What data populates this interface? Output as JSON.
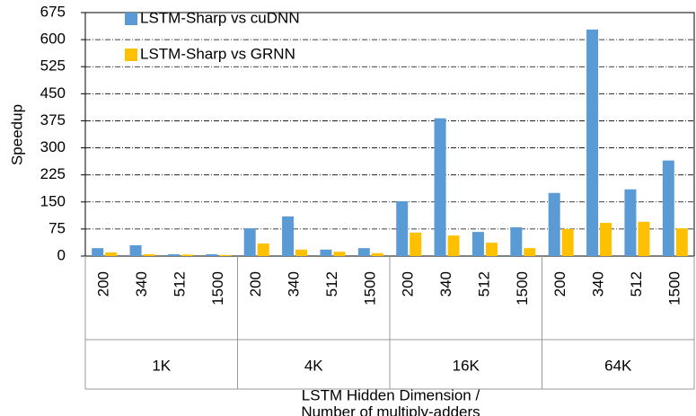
{
  "chart_data": {
    "type": "bar",
    "ylabel": "Speedup",
    "xlabel": [
      "LSTM Hidden Dimension /",
      "Number of multiply-adders"
    ],
    "categories": [
      "200",
      "340",
      "512",
      "1500",
      "200",
      "340",
      "512",
      "1500",
      "200",
      "340",
      "512",
      "1500",
      "200",
      "340",
      "512",
      "1500"
    ],
    "groups": [
      "1K",
      "4K",
      "16K",
      "64K"
    ],
    "series": [
      {
        "name": "LSTM-Sharp vs cuDNN",
        "color": "#5b9bd5",
        "values": [
          22,
          30,
          5,
          5,
          77,
          110,
          18,
          22,
          152,
          382,
          67,
          80,
          175,
          628,
          185,
          265
        ]
      },
      {
        "name": "LSTM-Sharp vs GRNN",
        "color": "#ffc000",
        "values": [
          10,
          5,
          4,
          3,
          35,
          18,
          12,
          8,
          65,
          57,
          37,
          22,
          75,
          92,
          95,
          77
        ]
      }
    ],
    "ylim": [
      0,
      675
    ],
    "yticks": [
      0,
      75,
      150,
      225,
      300,
      375,
      450,
      525,
      600,
      675
    ],
    "grid": true
  }
}
